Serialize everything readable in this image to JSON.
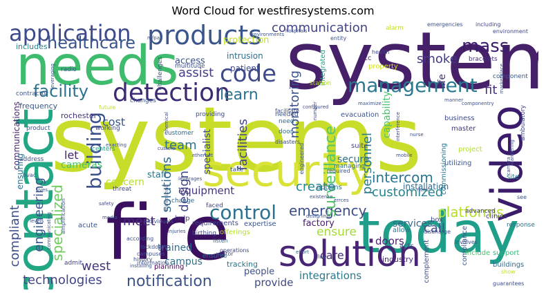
{
  "title": "Word Cloud for westfiresystems.com",
  "words": [
    {
      "text": "systems",
      "color": "#c8dd2a"
    },
    {
      "text": "system",
      "color": "#46216a"
    },
    {
      "text": "fire",
      "color": "#3b0f60"
    },
    {
      "text": "needs",
      "color": "#3fbb6e"
    },
    {
      "text": "today",
      "color": "#1f9e89"
    },
    {
      "text": "contact",
      "color": "#22a784"
    },
    {
      "text": "security",
      "color": "#d9e236"
    },
    {
      "text": "solution",
      "color": "#482475"
    },
    {
      "text": "video",
      "color": "#3b1c6b"
    },
    {
      "text": "products",
      "color": "#3a568c"
    },
    {
      "text": "detection",
      "color": "#3d2a72"
    },
    {
      "text": "code",
      "color": "#3f4a8a"
    },
    {
      "text": "management",
      "color": "#2a788e"
    },
    {
      "text": "application",
      "color": "#3f4a8a"
    },
    {
      "text": "control",
      "color": "#2c718e"
    },
    {
      "text": "facility",
      "color": "#2c728e"
    },
    {
      "text": "building",
      "color": "#3b518b"
    },
    {
      "text": "healthcare",
      "color": "#39568c"
    },
    {
      "text": "communication",
      "color": "#404387"
    },
    {
      "text": "mass",
      "color": "#3b1c6b"
    },
    {
      "text": "monitoring",
      "color": "#3b528b"
    },
    {
      "text": "emergency",
      "color": "#3c4f8a"
    },
    {
      "text": "surveillance",
      "color": "#54c568"
    },
    {
      "text": "notification",
      "color": "#3b528b"
    },
    {
      "text": "platforms",
      "color": "#b5de2b"
    },
    {
      "text": "intercom",
      "color": "#2a768e"
    },
    {
      "text": "customized",
      "color": "#26838f"
    },
    {
      "text": "learn",
      "color": "#2c718e"
    },
    {
      "text": "smoke",
      "color": "#443983"
    },
    {
      "text": "specialized",
      "color": "#6ccd5a"
    },
    {
      "text": "engineering",
      "color": "#3a548c"
    },
    {
      "text": "compliant",
      "color": "#3d4d8a"
    },
    {
      "text": "technologies",
      "color": "#414487"
    },
    {
      "text": "west",
      "color": "#46337e"
    },
    {
      "text": "solutions",
      "color": "#306a8e"
    },
    {
      "text": "design",
      "color": "#3f4889"
    },
    {
      "text": "facilities",
      "color": "#414487"
    },
    {
      "text": "create",
      "color": "#25848e"
    },
    {
      "text": "personnel",
      "color": "#2a788e"
    },
    {
      "text": "call",
      "color": "#3e4c8a"
    },
    {
      "text": "team",
      "color": "#2c718e"
    },
    {
      "text": "meet",
      "color": "#482979"
    },
    {
      "text": "assist",
      "color": "#433e85"
    },
    {
      "text": "care",
      "color": "#472a7a"
    },
    {
      "text": "ensure",
      "color": "#a5db36"
    },
    {
      "text": "integrations",
      "color": "#2a778e"
    },
    {
      "text": "provide",
      "color": "#3e4a89"
    },
    {
      "text": "services",
      "color": "#31678e"
    },
    {
      "text": "fit",
      "color": "#472d7b"
    },
    {
      "text": "life",
      "color": "#46307e"
    },
    {
      "text": "capability",
      "color": "#4ac16d"
    },
    {
      "text": "cost",
      "color": "#39568c"
    },
    {
      "text": "let",
      "color": "#482173"
    },
    {
      "text": "equipment",
      "color": "#46337e"
    },
    {
      "text": "staff",
      "color": "#2a788e"
    },
    {
      "text": "concern",
      "color": "#b8de29"
    },
    {
      "text": "doors",
      "color": "#481f70"
    },
    {
      "text": "factory",
      "color": "#481a6c"
    },
    {
      "text": "trained",
      "color": "#2f6c8e"
    },
    {
      "text": "campus",
      "color": "#2d718e"
    },
    {
      "text": "people",
      "color": "#3c508b"
    },
    {
      "text": "specialist",
      "color": "#3e4a89"
    },
    {
      "text": "secure",
      "color": "#2c718e"
    },
    {
      "text": "cameras",
      "color": "#46c06f"
    },
    {
      "text": "access",
      "color": "#3b528b"
    },
    {
      "text": "protection",
      "color": "#c2df23"
    },
    {
      "text": "intrusion",
      "color": "#2d708e"
    },
    {
      "text": "patient",
      "color": "#3e4989"
    },
    {
      "text": "communications",
      "color": "#482173"
    },
    {
      "text": "ensuring",
      "color": "#2c718e"
    },
    {
      "text": "includes",
      "color": "#26828e"
    },
    {
      "text": "frequency",
      "color": "#39558c"
    },
    {
      "text": "rochester",
      "color": "#46327e"
    },
    {
      "text": "installation",
      "color": "#31688e"
    },
    {
      "text": "industry",
      "color": "#482979"
    },
    {
      "text": "tracking",
      "color": "#2a768e"
    },
    {
      "text": "requirements",
      "color": "#404588"
    },
    {
      "text": "expertise",
      "color": "#3a538b"
    },
    {
      "text": "help",
      "color": "#46307e"
    },
    {
      "text": "planning",
      "color": "#440154"
    },
    {
      "text": "integrated",
      "color": "#1fa088"
    },
    {
      "text": "fcc",
      "color": "#482576"
    },
    {
      "text": "property",
      "color": "#d2e21b"
    },
    {
      "text": "evacuation",
      "color": "#3b528b"
    },
    {
      "text": "business",
      "color": "#3e4a89"
    },
    {
      "text": "master",
      "color": "#46327e"
    },
    {
      "text": "commissioning",
      "color": "#2c728e"
    },
    {
      "text": "project",
      "color": "#b2dd2d"
    },
    {
      "text": "suite",
      "color": "#414487"
    },
    {
      "text": "utilizing",
      "color": "#3b528b"
    },
    {
      "text": "site",
      "color": "#287d8e"
    },
    {
      "text": "clinics",
      "color": "#443a83"
    },
    {
      "text": "compliance",
      "color": "#3b528b"
    },
    {
      "text": "include",
      "color": "#4ac16d"
    },
    {
      "text": "support",
      "color": "#35b779"
    },
    {
      "text": "buildings",
      "color": "#31688e"
    },
    {
      "text": "complement",
      "color": "#3d4e8a"
    },
    {
      "text": "acts",
      "color": "#3b518b"
    },
    {
      "text": "allow",
      "color": "#2a788e"
    },
    {
      "text": "box",
      "color": "#3f4788"
    },
    {
      "text": "options",
      "color": "#2c728e"
    },
    {
      "text": "offerings",
      "color": "#b5de2b"
    },
    {
      "text": "acute",
      "color": "#3a548c"
    },
    {
      "text": "admit",
      "color": "#404588"
    },
    {
      "text": "advanced",
      "color": "#443983"
    },
    {
      "text": "response",
      "color": "#2b758e"
    },
    {
      "text": "ambulatory",
      "color": "#404387"
    },
    {
      "text": "component",
      "color": "#39568c"
    },
    {
      "text": "bracelets",
      "color": "#46327e"
    },
    {
      "text": "station",
      "color": "#b5de2b"
    },
    {
      "text": "alarm",
      "color": "#c2df23"
    },
    {
      "text": "emergencies",
      "color": "#3b528b"
    },
    {
      "text": "including",
      "color": "#404588"
    },
    {
      "text": "environment",
      "color": "#404588"
    },
    {
      "text": "health",
      "color": "#3f4889"
    },
    {
      "text": "multitude",
      "color": "#3b518b"
    },
    {
      "text": "challenges",
      "color": "#3b528b"
    },
    {
      "text": "radio",
      "color": "#39568c"
    },
    {
      "text": "contractor",
      "color": "#3a548c"
    },
    {
      "text": "product",
      "color": "#3b528b"
    },
    {
      "text": "working",
      "color": "#3e4a89"
    },
    {
      "text": "centers",
      "color": "#1fa187"
    },
    {
      "text": "customer",
      "color": "#31678e"
    },
    {
      "text": "providing",
      "color": "#3e4a89"
    },
    {
      "text": "changes",
      "color": "#3b518b"
    },
    {
      "text": "future",
      "color": "#bddf26"
    },
    {
      "text": "needed",
      "color": "#3b518b"
    },
    {
      "text": "need",
      "color": "#31678e"
    },
    {
      "text": "facilitate",
      "color": "#3e4c8a"
    },
    {
      "text": "door",
      "color": "#2c718e"
    },
    {
      "text": "managing",
      "color": "#2d708e"
    },
    {
      "text": "engineered",
      "color": "#3b528b"
    },
    {
      "text": "disasters",
      "color": "#3e4c8a"
    },
    {
      "text": "hvac",
      "color": "#3b528b"
    },
    {
      "text": "address",
      "color": "#3d4e8a"
    },
    {
      "text": "threat",
      "color": "#3e4989"
    },
    {
      "text": "change",
      "color": "#31688e"
    },
    {
      "text": "take",
      "color": "#3b518b"
    },
    {
      "text": "faced",
      "color": "#3f4889"
    },
    {
      "text": "birthing",
      "color": "#3f4889"
    },
    {
      "text": "ensures",
      "color": "#2c718e"
    },
    {
      "text": "individuals",
      "color": "#3b528b"
    },
    {
      "text": "listen",
      "color": "#2d708e"
    },
    {
      "text": "visitor",
      "color": "#3b518b"
    },
    {
      "text": "information",
      "color": "#3b518b"
    },
    {
      "text": "operations",
      "color": "#3f4889"
    },
    {
      "text": "lockdown",
      "color": "#3b518b"
    },
    {
      "text": "history",
      "color": "#3d4d8a"
    },
    {
      "text": "campuses",
      "color": "#3b518b"
    },
    {
      "text": "according",
      "color": "#3e4a89"
    },
    {
      "text": "entity",
      "color": "#3d4e8a"
    },
    {
      "text": "mfpa",
      "color": "#3d4e8a"
    },
    {
      "text": "required",
      "color": "#3e4c8a"
    },
    {
      "text": "flow",
      "color": "#3b518b"
    },
    {
      "text": "effort",
      "color": "#31678e"
    },
    {
      "text": "discharge",
      "color": "#3f4889"
    },
    {
      "text": "involves",
      "color": "#3b518b"
    },
    {
      "text": "guarantees",
      "color": "#3d4e8a"
    },
    {
      "text": "show",
      "color": "#bddf26"
    },
    {
      "text": "see",
      "color": "#3b518b"
    },
    {
      "text": "marketplace",
      "color": "#3b528b"
    },
    {
      "text": "configured",
      "color": "#3e4a89"
    },
    {
      "text": "number",
      "color": "#3f4889"
    },
    {
      "text": "maximize",
      "color": "#3b518b"
    },
    {
      "text": "manner",
      "color": "#3d4e8a"
    },
    {
      "text": "componentry",
      "color": "#3d4e8a"
    },
    {
      "text": "nurse",
      "color": "#3b518b"
    },
    {
      "text": "custom",
      "color": "#3f4889"
    },
    {
      "text": "ethernet",
      "color": "#3b518b"
    },
    {
      "text": "mobile",
      "color": "#3b518b"
    },
    {
      "text": "exacting",
      "color": "#3b518b"
    },
    {
      "text": "amplification",
      "color": "#3b528b"
    },
    {
      "text": "safety",
      "color": "#3f4889"
    },
    {
      "text": "media",
      "color": "#3d4e8a"
    },
    {
      "text": "levels",
      "color": "#3b518b"
    },
    {
      "text": "leveraging",
      "color": "#3b518b"
    },
    {
      "text": "chemical",
      "color": "#3f4889"
    },
    {
      "text": "minimizing",
      "color": "#3b528b"
    },
    {
      "text": "leverages",
      "color": "#3b518b"
    },
    {
      "text": "hospitals",
      "color": "#3d4e8a"
    },
    {
      "text": "environments",
      "color": "#3b518b"
    },
    {
      "text": "mms",
      "color": "#3b518b"
    },
    {
      "text": "existence",
      "color": "#3b518b"
    },
    {
      "text": "designing",
      "color": "#3b518b"
    },
    {
      "text": "errces",
      "color": "#3d4e8a"
    },
    {
      "text": "lives",
      "color": "#3b518b"
    },
    {
      "text": "communicating",
      "color": "#3b518b"
    },
    {
      "text": "interference",
      "color": "#3f4889"
    },
    {
      "text": "wandering",
      "color": "#3b518b"
    },
    {
      "text": "camera",
      "color": "#3b518b"
    },
    {
      "text": "injuries",
      "color": "#3b518b"
    },
    {
      "text": "installing",
      "color": "#3b518b"
    }
  ]
}
